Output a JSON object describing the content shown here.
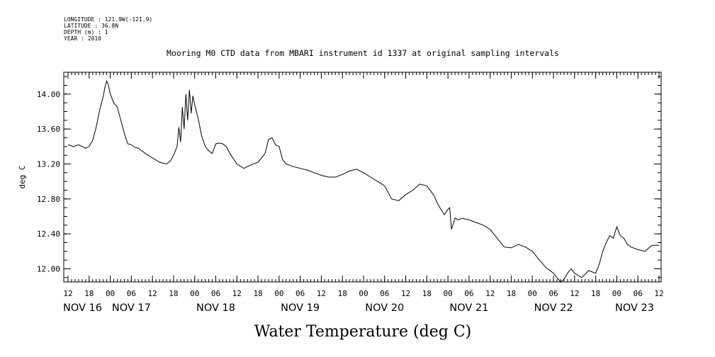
{
  "header": {
    "lines": [
      "LONGITUDE : 121.9W(-121.9)",
      "LATITUDE : 36.8N",
      "DEPTH (m) : 1",
      "YEAR : 2010"
    ]
  },
  "chart_data": {
    "type": "line",
    "title": "Mooring M0 CTD data from MBARI instrument id 1337 at original sampling intervals",
    "xlabel": "Water Temperature (deg C)",
    "ylabel": "deg C",
    "ylim": [
      11.85,
      14.25
    ],
    "yticks": [
      12.0,
      12.4,
      12.8,
      13.2,
      13.6,
      14.0
    ],
    "ytick_labels": [
      "12.00",
      "12.40",
      "12.80",
      "13.20",
      "13.60",
      "14.00"
    ],
    "xlim_hours": [
      0,
      168
    ],
    "hour_tick_labels": [
      "12",
      "18",
      "00",
      "06",
      "12",
      "18",
      "00",
      "06",
      "12",
      "18",
      "00",
      "06",
      "12",
      "18",
      "00",
      "06",
      "12",
      "18",
      "00",
      "06",
      "12",
      "18",
      "00",
      "06",
      "12",
      "18",
      "00",
      "06",
      "12"
    ],
    "date_labels": [
      "NOV 16",
      "NOV 17",
      "NOV 18",
      "NOV 19",
      "NOV 20",
      "NOV 21",
      "NOV 22",
      "NOV 23"
    ],
    "date_label_hours": [
      0,
      18,
      42,
      66,
      90,
      114,
      138,
      156
    ],
    "grid": false,
    "legend": "none",
    "line_color": "#000000",
    "series": [
      {
        "hours_from_nov16_12": [
          0,
          1.5,
          3,
          4,
          5,
          6,
          7,
          8,
          9,
          10,
          10.5,
          11,
          11.5,
          12,
          13,
          14,
          15,
          16,
          17,
          18,
          19,
          20,
          21,
          22,
          24,
          26,
          28,
          29,
          30,
          31,
          31.5,
          32,
          32.5,
          33,
          33.5,
          34,
          34.5,
          35,
          35.5,
          36,
          36.5,
          37,
          38,
          39,
          40,
          41,
          42,
          43,
          44,
          45,
          46,
          48,
          50,
          52,
          54,
          56,
          57,
          58,
          59,
          60,
          61,
          62,
          64,
          66,
          68,
          70,
          72,
          74,
          76,
          78,
          80,
          82,
          84,
          86,
          88,
          90,
          92,
          94,
          96,
          98,
          100,
          102,
          104,
          105,
          106,
          107,
          108,
          108.5,
          109,
          110,
          111,
          112,
          114,
          116,
          118,
          120,
          122,
          124,
          126,
          128,
          130,
          132,
          134,
          136,
          138,
          139,
          140,
          141,
          142,
          143,
          144,
          146,
          148,
          150,
          151,
          152,
          153,
          154,
          155,
          156,
          157,
          158,
          159,
          160,
          162,
          164,
          166,
          168
        ],
        "values": [
          13.42,
          13.4,
          13.42,
          13.4,
          13.38,
          13.4,
          13.47,
          13.62,
          13.82,
          13.97,
          14.08,
          14.15,
          14.1,
          14.0,
          13.9,
          13.85,
          13.7,
          13.55,
          13.43,
          13.42,
          13.39,
          13.38,
          13.35,
          13.32,
          13.27,
          13.22,
          13.2,
          13.23,
          13.3,
          13.4,
          13.62,
          13.45,
          13.85,
          13.6,
          14.0,
          13.7,
          14.05,
          13.78,
          13.98,
          13.88,
          13.8,
          13.72,
          13.52,
          13.4,
          13.35,
          13.32,
          13.43,
          13.44,
          13.43,
          13.4,
          13.32,
          13.2,
          13.15,
          13.19,
          13.22,
          13.32,
          13.48,
          13.5,
          13.42,
          13.4,
          13.25,
          13.2,
          13.17,
          13.15,
          13.13,
          13.1,
          13.07,
          13.05,
          13.05,
          13.08,
          13.12,
          13.14,
          13.1,
          13.05,
          13.0,
          12.95,
          12.8,
          12.78,
          12.85,
          12.9,
          12.97,
          12.95,
          12.84,
          12.75,
          12.68,
          12.62,
          12.68,
          12.7,
          12.45,
          12.58,
          12.56,
          12.58,
          12.56,
          12.53,
          12.5,
          12.45,
          12.35,
          12.25,
          12.24,
          12.28,
          12.25,
          12.2,
          12.1,
          12.01,
          11.95,
          11.9,
          11.85,
          11.88,
          11.95,
          12.0,
          11.95,
          11.9,
          11.98,
          11.95,
          12.05,
          12.2,
          12.3,
          12.38,
          12.35,
          12.48,
          12.38,
          12.35,
          12.28,
          12.25,
          12.22,
          12.2,
          12.27,
          12.27,
          12.24,
          12.19
        ]
      }
    ]
  }
}
